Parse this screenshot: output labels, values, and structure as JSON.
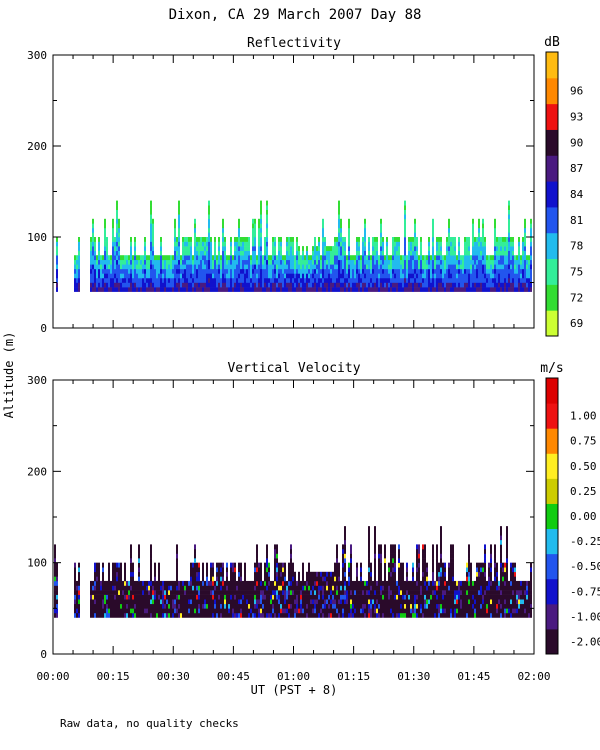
{
  "title": "Dixon, CA 29 March 2007  Day  88",
  "ylabel": "Altitude (m)",
  "xlabel": "UT  (PST + 8)",
  "footer": "Raw data, no quality checks",
  "x_ticks": [
    "00:00",
    "00:15",
    "00:30",
    "00:45",
    "01:00",
    "01:15",
    "01:30",
    "01:45",
    "02:00"
  ],
  "chart_data": [
    {
      "type": "heatmap",
      "title": "Reflectivity",
      "xlabel": "UT  (PST + 8)",
      "ylabel": "Altitude (m)",
      "xlim_minutes": [
        0,
        120
      ],
      "ylim": [
        0,
        300
      ],
      "y_ticks": [
        "0",
        "100",
        "200",
        "300"
      ],
      "y_tick_values": [
        0,
        100,
        200,
        300
      ],
      "colorbar": {
        "unit": "dB",
        "labels": [
          "69",
          "72",
          "75",
          "78",
          "81",
          "84",
          "87",
          "90",
          "93",
          "96"
        ],
        "colors": [
          "#ccff33",
          "#33dd33",
          "#33ee99",
          "#22bbee",
          "#2255ee",
          "#1111cc",
          "#4a1a80",
          "#2a0a2a",
          "#ee1111",
          "#ff8800",
          "#ffbb11"
        ]
      },
      "data_summary": {
        "echo_base_m": 40,
        "typical_echo_top_m": 100,
        "max_echo_top_m": 140,
        "min_dbz_label": 69,
        "max_dbz_label": 96
      }
    },
    {
      "type": "heatmap",
      "title": "Vertical Velocity",
      "xlabel": "UT  (PST + 8)",
      "ylabel": "Altitude (m)",
      "xlim_minutes": [
        0,
        120
      ],
      "ylim": [
        0,
        300
      ],
      "y_ticks": [
        "0",
        "100",
        "200",
        "300"
      ],
      "y_tick_values": [
        0,
        100,
        200,
        300
      ],
      "colorbar": {
        "unit": "m/s",
        "labels": [
          "-2.00",
          "-1.00",
          "-0.75",
          "-0.50",
          "-0.25",
          "0.00",
          "0.25",
          "0.50",
          "0.75",
          "1.00"
        ],
        "colors": [
          "#2a0a2a",
          "#4a1a80",
          "#1111cc",
          "#2255ee",
          "#22bbee",
          "#11cc11",
          "#cccc00",
          "#ffee22",
          "#ff8800",
          "#ee1111",
          "#dd0000"
        ]
      },
      "data_summary": {
        "echo_base_m": 40,
        "typical_echo_top_m": 100,
        "max_echo_top_m": 140,
        "dominant_velocity_ms": -2.0
      }
    }
  ]
}
